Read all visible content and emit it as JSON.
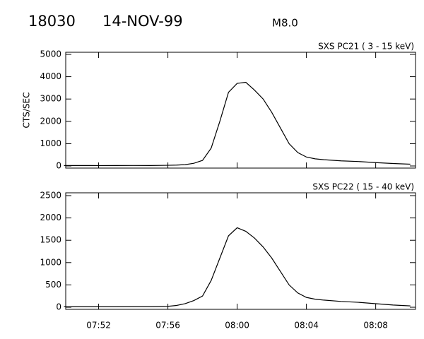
{
  "header": {
    "id": "18030",
    "date": "14-NOV-99",
    "class": "M8.0"
  },
  "chart_data": [
    {
      "type": "line",
      "title": "SXS PC21  (  3 - 15 keV)",
      "y_label": "CTS/SEC",
      "x": [
        470,
        471,
        472,
        473,
        474,
        475,
        476,
        476.5,
        477,
        477.5,
        478,
        478.5,
        479,
        479.5,
        480,
        480.5,
        481,
        481.5,
        482,
        482.5,
        483,
        483.5,
        484,
        484.5,
        485,
        486,
        487,
        488,
        489,
        490
      ],
      "series": [
        {
          "color": "#000000",
          "values": [
            20,
            20,
            18,
            20,
            22,
            20,
            30,
            40,
            60,
            120,
            250,
            800,
            2000,
            3300,
            3700,
            3750,
            3400,
            3000,
            2400,
            1700,
            1000,
            600,
            400,
            320,
            280,
            230,
            200,
            150,
            110,
            80
          ]
        }
      ],
      "xlim": [
        470.1,
        490.3
      ],
      "xticks": [
        472,
        476,
        480,
        484,
        488
      ],
      "ylim": [
        -95,
        5095
      ],
      "yticks": [
        0,
        1000,
        2000,
        3000,
        4000,
        5000
      ]
    },
    {
      "type": "line",
      "title": "SXS PC22  ( 15 - 40 keV)",
      "x": [
        470,
        471,
        472,
        473,
        474,
        475,
        476,
        476.5,
        477,
        477.5,
        478,
        478.5,
        479,
        479.5,
        480,
        480.5,
        481,
        481.5,
        482,
        482.5,
        483,
        483.5,
        484,
        484.5,
        485,
        486,
        487,
        488,
        489,
        490
      ],
      "series": [
        {
          "color": "#000000",
          "values": [
            10,
            10,
            10,
            10,
            12,
            12,
            20,
            40,
            80,
            150,
            250,
            600,
            1100,
            1600,
            1780,
            1700,
            1550,
            1350,
            1100,
            800,
            500,
            320,
            220,
            180,
            160,
            130,
            110,
            80,
            50,
            30
          ]
        }
      ],
      "xlim": [
        470.1,
        490.3
      ],
      "xticks": [
        {
          "value": 472,
          "label": "07:52"
        },
        {
          "value": 476,
          "label": "07:56"
        },
        {
          "value": 480,
          "label": "08:00"
        },
        {
          "value": 484,
          "label": "08:04"
        },
        {
          "value": 488,
          "label": "08:08"
        }
      ],
      "ylim": [
        -47,
        2563
      ],
      "yticks": [
        0,
        500,
        1000,
        1500,
        2000,
        2500
      ]
    }
  ]
}
